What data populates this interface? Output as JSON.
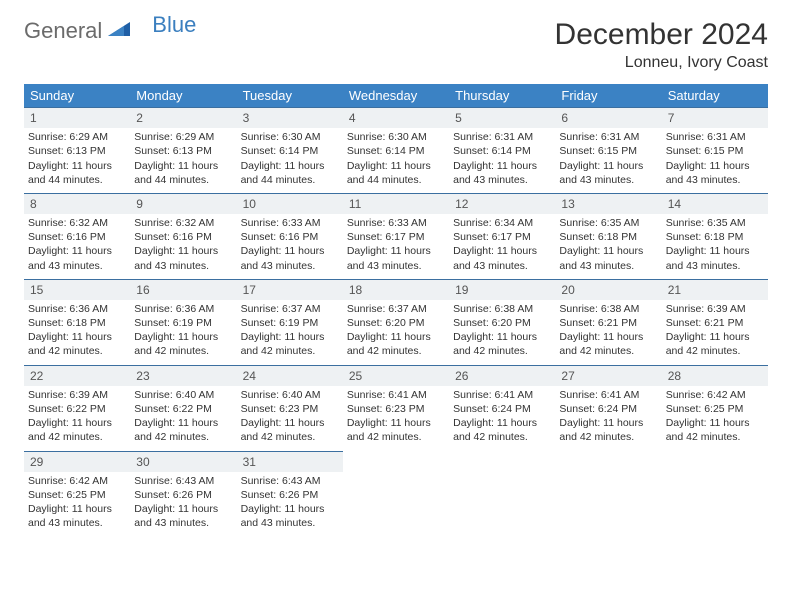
{
  "logo": {
    "part1": "General",
    "part2": "Blue"
  },
  "title": "December 2024",
  "location": "Lonneu, Ivory Coast",
  "colors": {
    "header_bg": "#3b82c4",
    "header_text": "#ffffff",
    "daynum_bg": "#eef1f3",
    "daynum_border": "#3b6fa0",
    "text": "#333333",
    "logo_gray": "#6b6b6b",
    "logo_blue": "#3b7fbf"
  },
  "weekdays": [
    "Sunday",
    "Monday",
    "Tuesday",
    "Wednesday",
    "Thursday",
    "Friday",
    "Saturday"
  ],
  "weeks": [
    [
      {
        "n": "1",
        "sr": "Sunrise: 6:29 AM",
        "ss": "Sunset: 6:13 PM",
        "dl": "Daylight: 11 hours and 44 minutes."
      },
      {
        "n": "2",
        "sr": "Sunrise: 6:29 AM",
        "ss": "Sunset: 6:13 PM",
        "dl": "Daylight: 11 hours and 44 minutes."
      },
      {
        "n": "3",
        "sr": "Sunrise: 6:30 AM",
        "ss": "Sunset: 6:14 PM",
        "dl": "Daylight: 11 hours and 44 minutes."
      },
      {
        "n": "4",
        "sr": "Sunrise: 6:30 AM",
        "ss": "Sunset: 6:14 PM",
        "dl": "Daylight: 11 hours and 44 minutes."
      },
      {
        "n": "5",
        "sr": "Sunrise: 6:31 AM",
        "ss": "Sunset: 6:14 PM",
        "dl": "Daylight: 11 hours and 43 minutes."
      },
      {
        "n": "6",
        "sr": "Sunrise: 6:31 AM",
        "ss": "Sunset: 6:15 PM",
        "dl": "Daylight: 11 hours and 43 minutes."
      },
      {
        "n": "7",
        "sr": "Sunrise: 6:31 AM",
        "ss": "Sunset: 6:15 PM",
        "dl": "Daylight: 11 hours and 43 minutes."
      }
    ],
    [
      {
        "n": "8",
        "sr": "Sunrise: 6:32 AM",
        "ss": "Sunset: 6:16 PM",
        "dl": "Daylight: 11 hours and 43 minutes."
      },
      {
        "n": "9",
        "sr": "Sunrise: 6:32 AM",
        "ss": "Sunset: 6:16 PM",
        "dl": "Daylight: 11 hours and 43 minutes."
      },
      {
        "n": "10",
        "sr": "Sunrise: 6:33 AM",
        "ss": "Sunset: 6:16 PM",
        "dl": "Daylight: 11 hours and 43 minutes."
      },
      {
        "n": "11",
        "sr": "Sunrise: 6:33 AM",
        "ss": "Sunset: 6:17 PM",
        "dl": "Daylight: 11 hours and 43 minutes."
      },
      {
        "n": "12",
        "sr": "Sunrise: 6:34 AM",
        "ss": "Sunset: 6:17 PM",
        "dl": "Daylight: 11 hours and 43 minutes."
      },
      {
        "n": "13",
        "sr": "Sunrise: 6:35 AM",
        "ss": "Sunset: 6:18 PM",
        "dl": "Daylight: 11 hours and 43 minutes."
      },
      {
        "n": "14",
        "sr": "Sunrise: 6:35 AM",
        "ss": "Sunset: 6:18 PM",
        "dl": "Daylight: 11 hours and 43 minutes."
      }
    ],
    [
      {
        "n": "15",
        "sr": "Sunrise: 6:36 AM",
        "ss": "Sunset: 6:18 PM",
        "dl": "Daylight: 11 hours and 42 minutes."
      },
      {
        "n": "16",
        "sr": "Sunrise: 6:36 AM",
        "ss": "Sunset: 6:19 PM",
        "dl": "Daylight: 11 hours and 42 minutes."
      },
      {
        "n": "17",
        "sr": "Sunrise: 6:37 AM",
        "ss": "Sunset: 6:19 PM",
        "dl": "Daylight: 11 hours and 42 minutes."
      },
      {
        "n": "18",
        "sr": "Sunrise: 6:37 AM",
        "ss": "Sunset: 6:20 PM",
        "dl": "Daylight: 11 hours and 42 minutes."
      },
      {
        "n": "19",
        "sr": "Sunrise: 6:38 AM",
        "ss": "Sunset: 6:20 PM",
        "dl": "Daylight: 11 hours and 42 minutes."
      },
      {
        "n": "20",
        "sr": "Sunrise: 6:38 AM",
        "ss": "Sunset: 6:21 PM",
        "dl": "Daylight: 11 hours and 42 minutes."
      },
      {
        "n": "21",
        "sr": "Sunrise: 6:39 AM",
        "ss": "Sunset: 6:21 PM",
        "dl": "Daylight: 11 hours and 42 minutes."
      }
    ],
    [
      {
        "n": "22",
        "sr": "Sunrise: 6:39 AM",
        "ss": "Sunset: 6:22 PM",
        "dl": "Daylight: 11 hours and 42 minutes."
      },
      {
        "n": "23",
        "sr": "Sunrise: 6:40 AM",
        "ss": "Sunset: 6:22 PM",
        "dl": "Daylight: 11 hours and 42 minutes."
      },
      {
        "n": "24",
        "sr": "Sunrise: 6:40 AM",
        "ss": "Sunset: 6:23 PM",
        "dl": "Daylight: 11 hours and 42 minutes."
      },
      {
        "n": "25",
        "sr": "Sunrise: 6:41 AM",
        "ss": "Sunset: 6:23 PM",
        "dl": "Daylight: 11 hours and 42 minutes."
      },
      {
        "n": "26",
        "sr": "Sunrise: 6:41 AM",
        "ss": "Sunset: 6:24 PM",
        "dl": "Daylight: 11 hours and 42 minutes."
      },
      {
        "n": "27",
        "sr": "Sunrise: 6:41 AM",
        "ss": "Sunset: 6:24 PM",
        "dl": "Daylight: 11 hours and 42 minutes."
      },
      {
        "n": "28",
        "sr": "Sunrise: 6:42 AM",
        "ss": "Sunset: 6:25 PM",
        "dl": "Daylight: 11 hours and 42 minutes."
      }
    ],
    [
      {
        "n": "29",
        "sr": "Sunrise: 6:42 AM",
        "ss": "Sunset: 6:25 PM",
        "dl": "Daylight: 11 hours and 43 minutes."
      },
      {
        "n": "30",
        "sr": "Sunrise: 6:43 AM",
        "ss": "Sunset: 6:26 PM",
        "dl": "Daylight: 11 hours and 43 minutes."
      },
      {
        "n": "31",
        "sr": "Sunrise: 6:43 AM",
        "ss": "Sunset: 6:26 PM",
        "dl": "Daylight: 11 hours and 43 minutes."
      },
      null,
      null,
      null,
      null
    ]
  ]
}
